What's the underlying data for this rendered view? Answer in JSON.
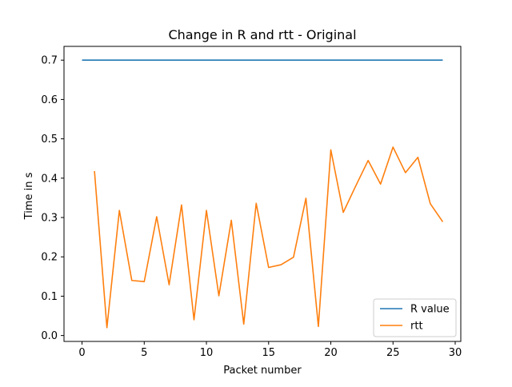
{
  "chart_data": {
    "type": "line",
    "title": "Change in R and rtt - Original",
    "xlabel": "Packet number",
    "ylabel": "Time in s",
    "xlim": [
      -1.45,
      30.45
    ],
    "ylim": [
      -0.015,
      0.735
    ],
    "xticks": [
      0,
      5,
      10,
      15,
      20,
      25,
      30
    ],
    "xtick_labels": [
      "0",
      "5",
      "10",
      "15",
      "20",
      "25",
      "30"
    ],
    "yticks": [
      0.0,
      0.1,
      0.2,
      0.3,
      0.4,
      0.5,
      0.6,
      0.7
    ],
    "ytick_labels": [
      "0.0",
      "0.1",
      "0.2",
      "0.3",
      "0.4",
      "0.5",
      "0.6",
      "0.7"
    ],
    "grid": false,
    "legend_position": "lower-right",
    "series": [
      {
        "name": "R value",
        "color": "#1f77b4",
        "x": [
          0,
          29
        ],
        "y": [
          0.7,
          0.7
        ]
      },
      {
        "name": "rtt",
        "color": "#ff7f0e",
        "x": [
          1,
          2,
          3,
          4,
          5,
          6,
          7,
          8,
          9,
          10,
          11,
          12,
          13,
          14,
          15,
          16,
          17,
          18,
          19,
          20,
          21,
          22,
          23,
          24,
          25,
          26,
          27,
          28,
          29
        ],
        "y": [
          0.418,
          0.02,
          0.318,
          0.14,
          0.137,
          0.302,
          0.129,
          0.332,
          0.04,
          0.318,
          0.101,
          0.293,
          0.029,
          0.336,
          0.173,
          0.18,
          0.199,
          0.349,
          0.023,
          0.472,
          0.313,
          0.38,
          0.445,
          0.385,
          0.479,
          0.414,
          0.453,
          0.335,
          0.289
        ]
      }
    ]
  }
}
